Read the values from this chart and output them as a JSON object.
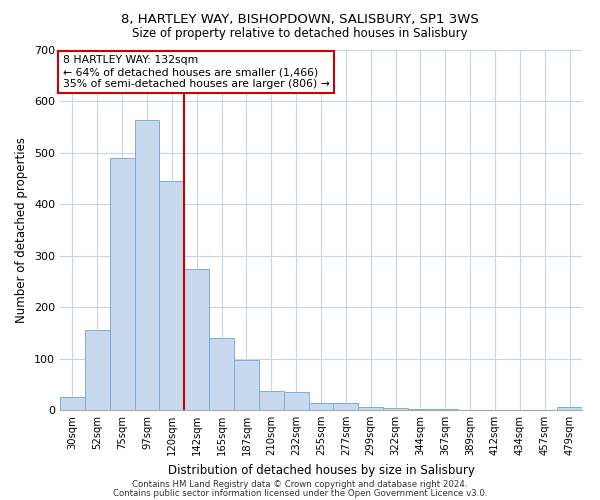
{
  "title": "8, HARTLEY WAY, BISHOPDOWN, SALISBURY, SP1 3WS",
  "subtitle": "Size of property relative to detached houses in Salisbury",
  "xlabel": "Distribution of detached houses by size in Salisbury",
  "ylabel": "Number of detached properties",
  "bar_labels": [
    "30sqm",
    "52sqm",
    "75sqm",
    "97sqm",
    "120sqm",
    "142sqm",
    "165sqm",
    "187sqm",
    "210sqm",
    "232sqm",
    "255sqm",
    "277sqm",
    "299sqm",
    "322sqm",
    "344sqm",
    "367sqm",
    "389sqm",
    "412sqm",
    "434sqm",
    "457sqm",
    "479sqm"
  ],
  "bar_values": [
    25,
    155,
    490,
    563,
    445,
    275,
    140,
    98,
    37,
    35,
    13,
    13,
    5,
    3,
    2,
    1,
    0,
    0,
    0,
    0,
    5
  ],
  "bar_color": "#c8d9ee",
  "bar_edge_color": "#7bafd4",
  "vline_color": "#cc0000",
  "ylim": [
    0,
    700
  ],
  "yticks": [
    0,
    100,
    200,
    300,
    400,
    500,
    600,
    700
  ],
  "annotation_title": "8 HARTLEY WAY: 132sqm",
  "annotation_line1": "← 64% of detached houses are smaller (1,466)",
  "annotation_line2": "35% of semi-detached houses are larger (806) →",
  "footer_line1": "Contains HM Land Registry data © Crown copyright and database right 2024.",
  "footer_line2": "Contains public sector information licensed under the Open Government Licence v3.0.",
  "bg_color": "#ffffff",
  "grid_color": "#c8d4e0"
}
